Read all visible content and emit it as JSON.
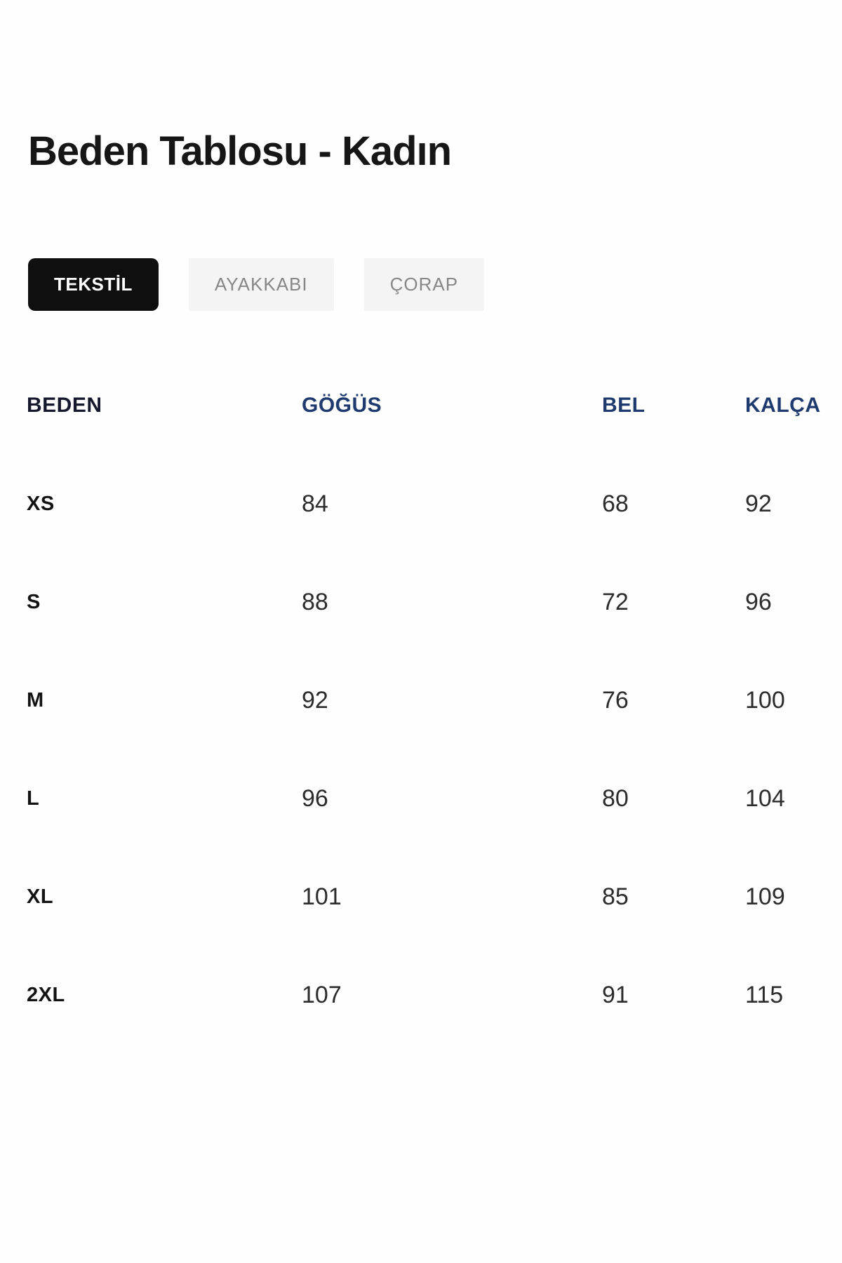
{
  "page": {
    "title": "Beden Tablosu - Kadın"
  },
  "tabs": [
    {
      "label": "TEKSTİL",
      "active": true
    },
    {
      "label": "AYAKKABI",
      "active": false
    },
    {
      "label": "ÇORAP",
      "active": false
    }
  ],
  "size_table": {
    "columns": [
      "BEDEN",
      "GÖĞÜS",
      "BEL",
      "KALÇA"
    ],
    "rows": [
      {
        "beden": "XS",
        "gogus": "84",
        "bel": "68",
        "kalca": "92"
      },
      {
        "beden": "S",
        "gogus": "88",
        "bel": "72",
        "kalca": "96"
      },
      {
        "beden": "M",
        "gogus": "92",
        "bel": "76",
        "kalca": "100"
      },
      {
        "beden": "L",
        "gogus": "96",
        "bel": "80",
        "kalca": "104"
      },
      {
        "beden": "XL",
        "gogus": "101",
        "bel": "85",
        "kalca": "109"
      },
      {
        "beden": "2XL",
        "gogus": "107",
        "bel": "91",
        "kalca": "115"
      }
    ]
  },
  "colors": {
    "active_tab_bg": "#0f0f0f",
    "active_tab_text": "#ffffff",
    "inactive_tab_bg": "#f4f4f4",
    "inactive_tab_text": "#878787",
    "header_beden": "#16182d",
    "header_accent": "#1e3a6e",
    "title_text": "#161616",
    "cell_text": "#2c2c2c"
  }
}
